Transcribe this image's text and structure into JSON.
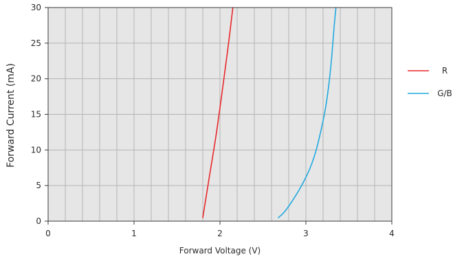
{
  "chart_data": {
    "type": "line",
    "title": "",
    "xlabel": "Forward Voltage (V)",
    "ylabel": "Forward Current (mA)",
    "xlim": [
      0,
      4
    ],
    "ylim": [
      0,
      30
    ],
    "x_ticks": [
      0,
      1,
      2,
      3,
      4
    ],
    "y_ticks": [
      0,
      5,
      10,
      15,
      20,
      25,
      30
    ],
    "x_minor_step": 0.2,
    "y_minor_step": 5,
    "grid": true,
    "legend_position": "right",
    "series": [
      {
        "name": "R",
        "color": "#e8262a",
        "x": [
          1.8,
          1.88,
          1.96,
          2.04,
          2.1,
          2.15
        ],
        "y": [
          0.5,
          6.5,
          12.5,
          19.5,
          25.0,
          30.0
        ]
      },
      {
        "name": "G/B",
        "color": "#1fa9df",
        "x": [
          2.68,
          2.75,
          2.85,
          2.95,
          3.05,
          3.12,
          3.18,
          3.23,
          3.27,
          3.3,
          3.33,
          3.35
        ],
        "y": [
          0.5,
          1.3,
          3.0,
          5.0,
          7.5,
          10.0,
          13.0,
          16.0,
          19.5,
          23.0,
          27.5,
          30.0
        ]
      }
    ]
  }
}
